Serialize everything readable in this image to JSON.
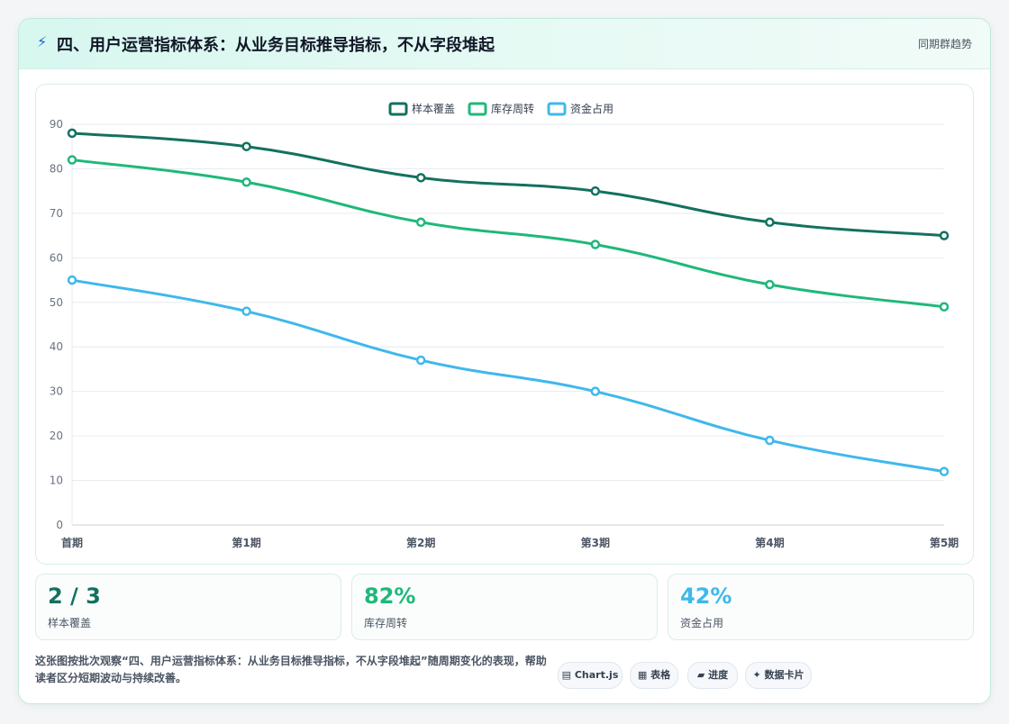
{
  "header": {
    "icon": "lightning-icon",
    "title": "四、用户运营指标体系：从业务目标推导指标，不从字段堆起",
    "right_label": "同期群趋势"
  },
  "chart_data": {
    "type": "line",
    "categories": [
      "首期",
      "第1期",
      "第2期",
      "第3期",
      "第4期",
      "第5期"
    ],
    "series": [
      {
        "name": "样本覆盖",
        "color": "#13715f",
        "values": [
          88,
          85,
          78,
          75,
          68,
          65
        ]
      },
      {
        "name": "库存周转",
        "color": "#1fb87a",
        "values": [
          82,
          77,
          68,
          63,
          54,
          49
        ]
      },
      {
        "name": "资金占用",
        "color": "#3fb8ec",
        "values": [
          55,
          48,
          37,
          30,
          19,
          12
        ]
      }
    ],
    "ylim": [
      0,
      90
    ],
    "yticks": [
      0,
      10,
      20,
      30,
      40,
      50,
      60,
      70,
      80,
      90
    ],
    "grid": true,
    "legend": "top-center",
    "smooth": true
  },
  "stats": [
    {
      "value": "2 / 3",
      "label": "样本覆盖",
      "color": "#13715f"
    },
    {
      "value": "82%",
      "label": "库存周转",
      "color": "#1fb87a"
    },
    {
      "value": "42%",
      "label": "资金占用",
      "color": "#3fb8ec"
    }
  ],
  "footer": {
    "description": "这张图按批次观察“四、用户运营指标体系：从业务目标推导指标，不从字段堆起”随周期变化的表现，帮助读者区分短期波动与持续改善。",
    "chips": [
      {
        "icon": "chart-icon",
        "glyph": "▤",
        "label": "Chart.js"
      },
      {
        "icon": "table-icon",
        "glyph": "▦",
        "label": "表格"
      },
      {
        "icon": "progress-icon",
        "glyph": "▰",
        "label": "进度"
      },
      {
        "icon": "sparkle-icon",
        "glyph": "✦",
        "label": "数据卡片"
      }
    ]
  }
}
